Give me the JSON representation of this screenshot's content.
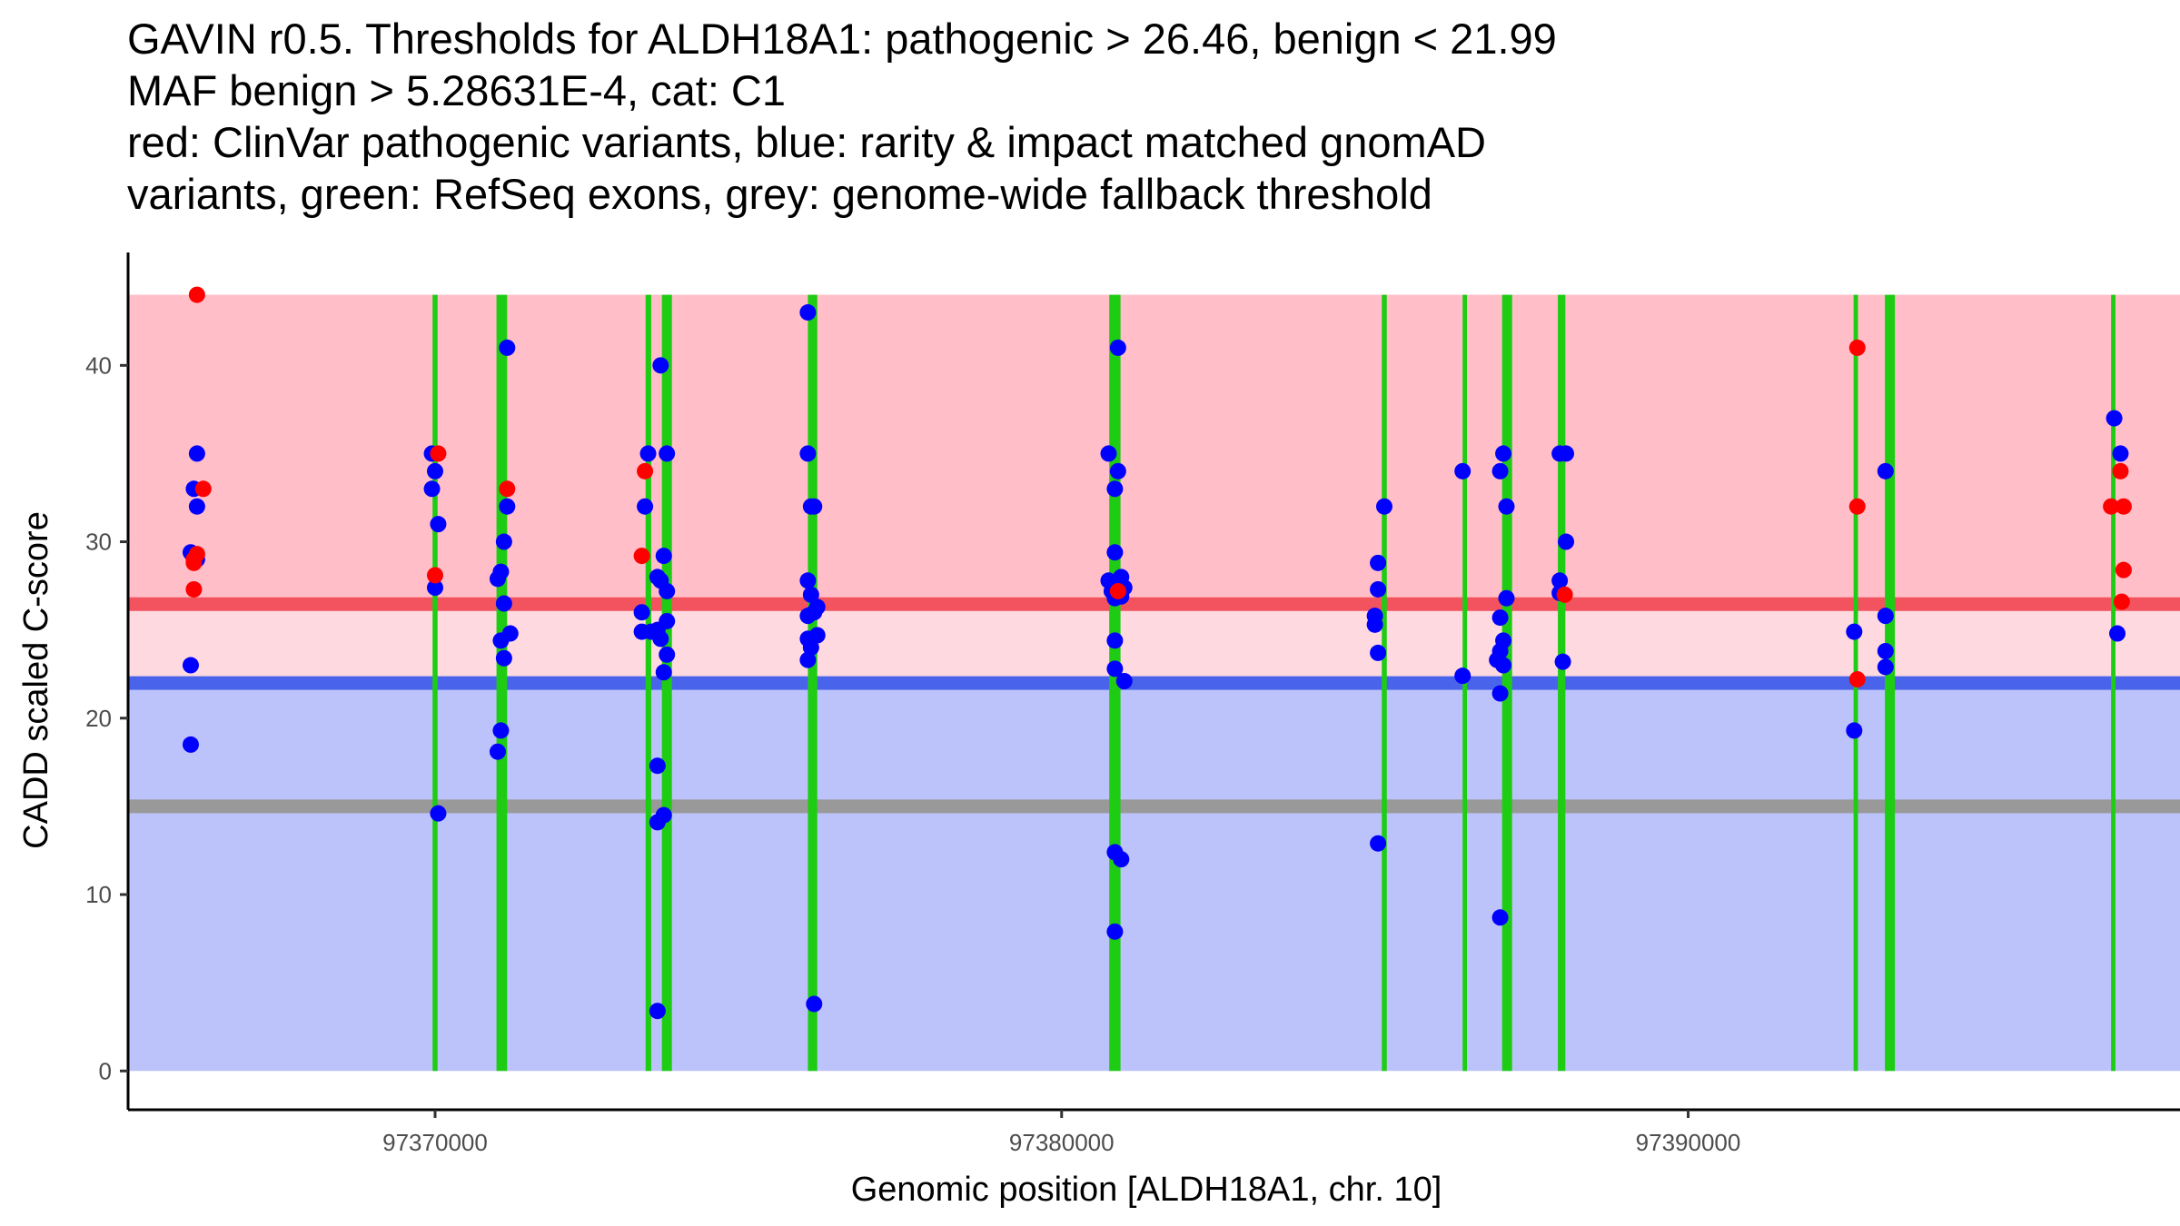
{
  "colors": {
    "pathogenic_zone": "#ffbec8",
    "gray_zone": "#ffd9e0",
    "benign_zone": "#bcc3fa",
    "pathogenic_line": "#f2535e",
    "benign_line": "#4a63eb",
    "fallback_line": "#999999",
    "exon": "#1fcc14",
    "clinvar_point": "#ff0000",
    "gnomad_point": "#0000ff"
  },
  "chart_data": {
    "type": "scatter",
    "title_lines": [
      "GAVIN r0.5. Thresholds for ALDH18A1: pathogenic > 26.46, benign < 21.99",
      "MAF benign > 5.28631E-4, cat: C1",
      "red: ClinVar pathogenic variants, blue: rarity & impact matched gnomAD",
      "variants, green: RefSeq exons, grey: genome-wide fallback threshold"
    ],
    "xlabel": "Genomic position [ALDH18A1, chr. 10]",
    "ylabel": "CADD scaled C-score",
    "xlim": [
      97365100,
      97397850
    ],
    "ylim": [
      -2.2,
      46.4
    ],
    "x_ticks": [
      97370000,
      97380000,
      97390000
    ],
    "x_tick_labels": [
      "97370000",
      "97380000",
      "97390000"
    ],
    "y_ticks": [
      0,
      10,
      20,
      30,
      40
    ],
    "y_tick_labels": [
      "0",
      "10",
      "20",
      "30",
      "40"
    ],
    "zones": [
      {
        "name": "pathogenic",
        "y0": 26.46,
        "y1": 44.0
      },
      {
        "name": "gray",
        "y0": 21.99,
        "y1": 26.46
      },
      {
        "name": "benign",
        "y0": 0,
        "y1": 21.99
      }
    ],
    "zone_x_range": [
      97365100,
      97397850
    ],
    "threshold_lines": [
      {
        "name": "pathogenic",
        "y": 26.46
      },
      {
        "name": "benign",
        "y": 21.99
      },
      {
        "name": "fallback",
        "y": 15.0
      }
    ],
    "exons": [
      {
        "x0": 97369960,
        "x1": 97370040
      },
      {
        "x0": 97370980,
        "x1": 97371150
      },
      {
        "x0": 97373360,
        "x1": 97373450
      },
      {
        "x0": 97373620,
        "x1": 97373780
      },
      {
        "x0": 97375950,
        "x1": 97376100
      },
      {
        "x0": 97380760,
        "x1": 97380940
      },
      {
        "x0": 97385110,
        "x1": 97385190
      },
      {
        "x0": 97386400,
        "x1": 97386470
      },
      {
        "x0": 97387030,
        "x1": 97387190
      },
      {
        "x0": 97387920,
        "x1": 97388040
      },
      {
        "x0": 97392640,
        "x1": 97392710
      },
      {
        "x0": 97393140,
        "x1": 97393300
      },
      {
        "x0": 97396750,
        "x1": 97396820
      }
    ],
    "series": [
      {
        "name": "ClinVar pathogenic variants",
        "points": [
          [
            97366200,
            44
          ],
          [
            97366300,
            33
          ],
          [
            97366200,
            29.3
          ],
          [
            97366150,
            29
          ],
          [
            97366150,
            28.8
          ],
          [
            97366150,
            27.3
          ],
          [
            97370050,
            35
          ],
          [
            97370000,
            28.1
          ],
          [
            97371150,
            33
          ],
          [
            97373350,
            34
          ],
          [
            97373300,
            29.2
          ],
          [
            97380900,
            27.2
          ],
          [
            97388030,
            27
          ],
          [
            97392700,
            41
          ],
          [
            97392700,
            32
          ],
          [
            97392700,
            22.2
          ],
          [
            97396750,
            32
          ],
          [
            97396900,
            34
          ],
          [
            97396950,
            32
          ],
          [
            97396950,
            28.4
          ],
          [
            97396920,
            26.6
          ]
        ]
      },
      {
        "name": "gnomAD matched variants",
        "points": [
          [
            97366200,
            35
          ],
          [
            97366150,
            33
          ],
          [
            97366200,
            32
          ],
          [
            97366100,
            29.4
          ],
          [
            97366200,
            29
          ],
          [
            97366100,
            23
          ],
          [
            97366100,
            18.5
          ],
          [
            97369950,
            35
          ],
          [
            97370000,
            34
          ],
          [
            97369950,
            33
          ],
          [
            97370050,
            31
          ],
          [
            97370000,
            27.4
          ],
          [
            97370050,
            14.6
          ],
          [
            97371150,
            41
          ],
          [
            97371150,
            32
          ],
          [
            97371100,
            30
          ],
          [
            97371050,
            28.3
          ],
          [
            97371000,
            27.9
          ],
          [
            97371100,
            26.5
          ],
          [
            97371200,
            24.8
          ],
          [
            97371050,
            24.4
          ],
          [
            97371100,
            23.4
          ],
          [
            97371050,
            19.3
          ],
          [
            97371000,
            18.1
          ],
          [
            97373400,
            35
          ],
          [
            97373350,
            32
          ],
          [
            97373600,
            40
          ],
          [
            97373700,
            35
          ],
          [
            97373650,
            29.2
          ],
          [
            97373550,
            28
          ],
          [
            97373600,
            27.8
          ],
          [
            97373700,
            27.2
          ],
          [
            97373300,
            26
          ],
          [
            97373700,
            25.5
          ],
          [
            97373550,
            25
          ],
          [
            97373300,
            24.9
          ],
          [
            97373450,
            24.9
          ],
          [
            97373600,
            24.5
          ],
          [
            97373700,
            23.6
          ],
          [
            97373650,
            22.6
          ],
          [
            97373550,
            17.3
          ],
          [
            97373650,
            14.5
          ],
          [
            97373550,
            14.1
          ],
          [
            97373550,
            3.4
          ],
          [
            97375950,
            43
          ],
          [
            97375950,
            35
          ],
          [
            97376000,
            32
          ],
          [
            97376050,
            32
          ],
          [
            97375950,
            27.8
          ],
          [
            97376000,
            27
          ],
          [
            97376100,
            26.3
          ],
          [
            97376050,
            26
          ],
          [
            97375950,
            25.8
          ],
          [
            97376100,
            24.7
          ],
          [
            97375950,
            24.5
          ],
          [
            97376000,
            24
          ],
          [
            97375950,
            23.3
          ],
          [
            97376050,
            3.8
          ],
          [
            97380750,
            35
          ],
          [
            97380900,
            41
          ],
          [
            97380900,
            34
          ],
          [
            97380850,
            33
          ],
          [
            97380850,
            29.4
          ],
          [
            97380750,
            27.8
          ],
          [
            97380950,
            28
          ],
          [
            97380800,
            27.2
          ],
          [
            97380850,
            26.8
          ],
          [
            97380950,
            26.9
          ],
          [
            97381000,
            27.4
          ],
          [
            97380850,
            24.4
          ],
          [
            97380850,
            22.8
          ],
          [
            97381000,
            22.1
          ],
          [
            97380850,
            12.4
          ],
          [
            97380950,
            12
          ],
          [
            97380850,
            7.9
          ],
          [
            97385050,
            28.8
          ],
          [
            97385050,
            27.3
          ],
          [
            97385150,
            32
          ],
          [
            97385000,
            25.8
          ],
          [
            97385000,
            25.3
          ],
          [
            97385050,
            23.7
          ],
          [
            97385050,
            12.9
          ],
          [
            97386400,
            34
          ],
          [
            97386400,
            22.4
          ],
          [
            97387000,
            34
          ],
          [
            97387050,
            35
          ],
          [
            97387100,
            32
          ],
          [
            97387100,
            26.8
          ],
          [
            97387000,
            25.7
          ],
          [
            97387050,
            24.4
          ],
          [
            97386950,
            23.3
          ],
          [
            97387050,
            23
          ],
          [
            97387000,
            23.8
          ],
          [
            97387000,
            21.4
          ],
          [
            97387000,
            8.7
          ],
          [
            97387950,
            35
          ],
          [
            97388050,
            35
          ],
          [
            97388050,
            30
          ],
          [
            97387950,
            27.8
          ],
          [
            97387950,
            27.1
          ],
          [
            97388000,
            23.2
          ],
          [
            97392650,
            24.9
          ],
          [
            97392650,
            19.3
          ],
          [
            97393150,
            34
          ],
          [
            97393150,
            25.8
          ],
          [
            97393150,
            23.8
          ],
          [
            97393150,
            22.9
          ],
          [
            97396800,
            37
          ],
          [
            97396900,
            35
          ],
          [
            97396850,
            24.8
          ]
        ]
      }
    ]
  }
}
